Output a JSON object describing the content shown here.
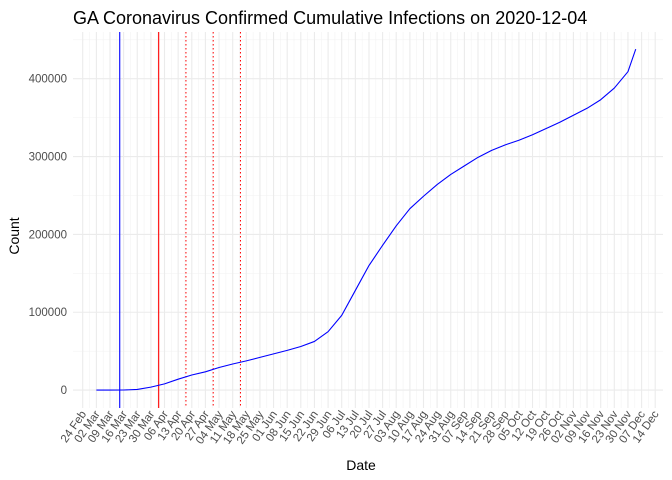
{
  "chart_data": {
    "type": "line",
    "title": "GA Coronavirus Confirmed Cumulative Infections on 2020-12-04",
    "xlabel": "Date",
    "ylabel": "Count",
    "x_axis": {
      "type": "date",
      "range": [
        "2020-02-19",
        "2020-12-18"
      ],
      "ticks": [
        {
          "date": "2020-02-24",
          "label": "24 Feb"
        },
        {
          "date": "2020-03-02",
          "label": "02 Mar"
        },
        {
          "date": "2020-03-09",
          "label": "09 Mar"
        },
        {
          "date": "2020-03-16",
          "label": "16 Mar"
        },
        {
          "date": "2020-03-23",
          "label": "23 Mar"
        },
        {
          "date": "2020-03-30",
          "label": "30 Mar"
        },
        {
          "date": "2020-04-06",
          "label": "06 Apr"
        },
        {
          "date": "2020-04-13",
          "label": "13 Apr"
        },
        {
          "date": "2020-04-20",
          "label": "20 Apr"
        },
        {
          "date": "2020-04-27",
          "label": "27 Apr"
        },
        {
          "date": "2020-05-04",
          "label": "04 May"
        },
        {
          "date": "2020-05-11",
          "label": "11 May"
        },
        {
          "date": "2020-05-18",
          "label": "18 May"
        },
        {
          "date": "2020-05-25",
          "label": "25 May"
        },
        {
          "date": "2020-06-01",
          "label": "01 Jun"
        },
        {
          "date": "2020-06-08",
          "label": "08 Jun"
        },
        {
          "date": "2020-06-15",
          "label": "15 Jun"
        },
        {
          "date": "2020-06-22",
          "label": "22 Jun"
        },
        {
          "date": "2020-06-29",
          "label": "29 Jun"
        },
        {
          "date": "2020-07-06",
          "label": "06 Jul"
        },
        {
          "date": "2020-07-13",
          "label": "13 Jul"
        },
        {
          "date": "2020-07-20",
          "label": "20 Jul"
        },
        {
          "date": "2020-07-27",
          "label": "27 Jul"
        },
        {
          "date": "2020-08-03",
          "label": "03 Aug"
        },
        {
          "date": "2020-08-10",
          "label": "10 Aug"
        },
        {
          "date": "2020-08-17",
          "label": "17 Aug"
        },
        {
          "date": "2020-08-24",
          "label": "24 Aug"
        },
        {
          "date": "2020-08-31",
          "label": "31 Aug"
        },
        {
          "date": "2020-09-07",
          "label": "07 Sep"
        },
        {
          "date": "2020-09-14",
          "label": "14 Sep"
        },
        {
          "date": "2020-09-21",
          "label": "21 Sep"
        },
        {
          "date": "2020-09-28",
          "label": "28 Sep"
        },
        {
          "date": "2020-10-05",
          "label": "05 Oct"
        },
        {
          "date": "2020-10-12",
          "label": "12 Oct"
        },
        {
          "date": "2020-10-19",
          "label": "19 Oct"
        },
        {
          "date": "2020-10-26",
          "label": "26 Oct"
        },
        {
          "date": "2020-11-02",
          "label": "02 Nov"
        },
        {
          "date": "2020-11-09",
          "label": "09 Nov"
        },
        {
          "date": "2020-11-16",
          "label": "16 Nov"
        },
        {
          "date": "2020-11-23",
          "label": "23 Nov"
        },
        {
          "date": "2020-11-30",
          "label": "30 Nov"
        },
        {
          "date": "2020-12-07",
          "label": "07 Dec"
        },
        {
          "date": "2020-12-14",
          "label": "14 Dec"
        }
      ]
    },
    "y_axis": {
      "range": [
        -23000,
        460000
      ],
      "ticks": [
        0,
        100000,
        200000,
        300000,
        400000
      ],
      "tick_labels": [
        "0",
        "100000",
        "200000",
        "300000",
        "400000"
      ]
    },
    "grid": true,
    "series": [
      {
        "color": "#0000ff",
        "points": [
          [
            "2020-03-02",
            0
          ],
          [
            "2020-03-09",
            0
          ],
          [
            "2020-03-16",
            120
          ],
          [
            "2020-03-23",
            800
          ],
          [
            "2020-03-30",
            3800
          ],
          [
            "2020-04-06",
            8000
          ],
          [
            "2020-04-13",
            14000
          ],
          [
            "2020-04-20",
            19400
          ],
          [
            "2020-04-27",
            23500
          ],
          [
            "2020-05-04",
            29000
          ],
          [
            "2020-05-11",
            33500
          ],
          [
            "2020-05-18",
            37500
          ],
          [
            "2020-05-25",
            42000
          ],
          [
            "2020-06-01",
            46500
          ],
          [
            "2020-06-08",
            51000
          ],
          [
            "2020-06-15",
            56000
          ],
          [
            "2020-06-22",
            62500
          ],
          [
            "2020-06-29",
            75000
          ],
          [
            "2020-07-06",
            96000
          ],
          [
            "2020-07-13",
            128000
          ],
          [
            "2020-07-20",
            160000
          ],
          [
            "2020-07-27",
            186000
          ],
          [
            "2020-08-03",
            211000
          ],
          [
            "2020-08-10",
            233000
          ],
          [
            "2020-08-17",
            249000
          ],
          [
            "2020-08-24",
            264000
          ],
          [
            "2020-08-31",
            277000
          ],
          [
            "2020-09-07",
            288000
          ],
          [
            "2020-09-14",
            299000
          ],
          [
            "2020-09-21",
            308000
          ],
          [
            "2020-09-28",
            315000
          ],
          [
            "2020-10-05",
            321000
          ],
          [
            "2020-10-12",
            328000
          ],
          [
            "2020-10-19",
            336000
          ],
          [
            "2020-10-26",
            344000
          ],
          [
            "2020-11-02",
            353000
          ],
          [
            "2020-11-09",
            362000
          ],
          [
            "2020-11-16",
            373000
          ],
          [
            "2020-11-23",
            388000
          ],
          [
            "2020-11-30",
            409000
          ],
          [
            "2020-12-04",
            438000
          ]
        ]
      }
    ],
    "vertical_lines": [
      {
        "date": "2020-03-14",
        "color": "#0000ff",
        "style": "solid"
      },
      {
        "date": "2020-04-03",
        "color": "#ff0000",
        "style": "solid"
      },
      {
        "date": "2020-04-17",
        "color": "#ff0000",
        "style": "dotted"
      },
      {
        "date": "2020-05-01",
        "color": "#ff0000",
        "style": "dotted"
      },
      {
        "date": "2020-05-15",
        "color": "#ff0000",
        "style": "dotted"
      }
    ]
  }
}
